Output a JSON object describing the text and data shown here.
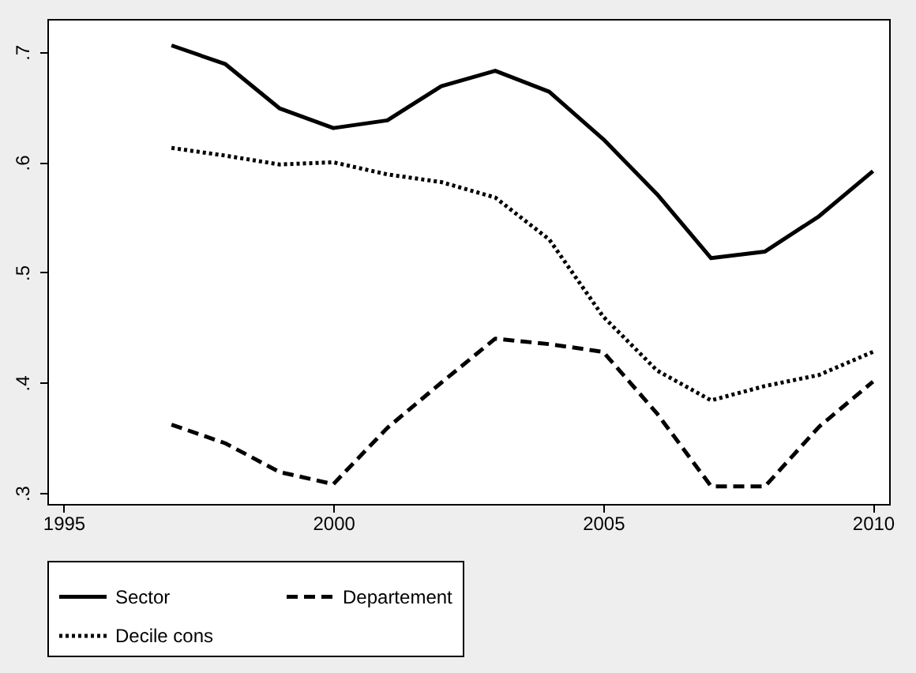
{
  "chart_data": {
    "type": "line",
    "x": [
      1997,
      1998,
      1999,
      2000,
      2001,
      2002,
      2003,
      2004,
      2005,
      2006,
      2007,
      2008,
      2009,
      2010
    ],
    "series": [
      {
        "name": "Sector",
        "color": "#000000",
        "line_style": "solid",
        "values": [
          0.706,
          0.689,
          0.649,
          0.631,
          0.638,
          0.669,
          0.683,
          0.664,
          0.621,
          0.571,
          0.513,
          0.519,
          0.551,
          0.592
        ]
      },
      {
        "name": "Departement",
        "color": "#000000",
        "line_style": "dashed",
        "values": [
          0.362,
          0.345,
          0.319,
          0.308,
          0.359,
          0.4,
          0.44,
          0.435,
          0.428,
          0.372,
          0.306,
          0.306,
          0.36,
          0.401
        ]
      },
      {
        "name": "Decile cons",
        "color": "#000000",
        "line_style": "dotted",
        "values": [
          0.613,
          0.606,
          0.598,
          0.6,
          0.589,
          0.582,
          0.568,
          0.53,
          0.46,
          0.411,
          0.384,
          0.397,
          0.407,
          0.428
        ]
      }
    ],
    "xlim": [
      1994.7,
      2010.3
    ],
    "xticks": [
      1995,
      2000,
      2005,
      2010
    ],
    "ylim": [
      0.29,
      0.73
    ],
    "yticks": [
      {
        "value": 0.3,
        "label": ".3"
      },
      {
        "value": 0.4,
        "label": ".4"
      },
      {
        "value": 0.5,
        "label": ".5"
      },
      {
        "value": 0.6,
        "label": ".6"
      },
      {
        "value": 0.7,
        "label": ".7"
      }
    ],
    "grid": false,
    "legend": "bottom",
    "marker": "none"
  }
}
